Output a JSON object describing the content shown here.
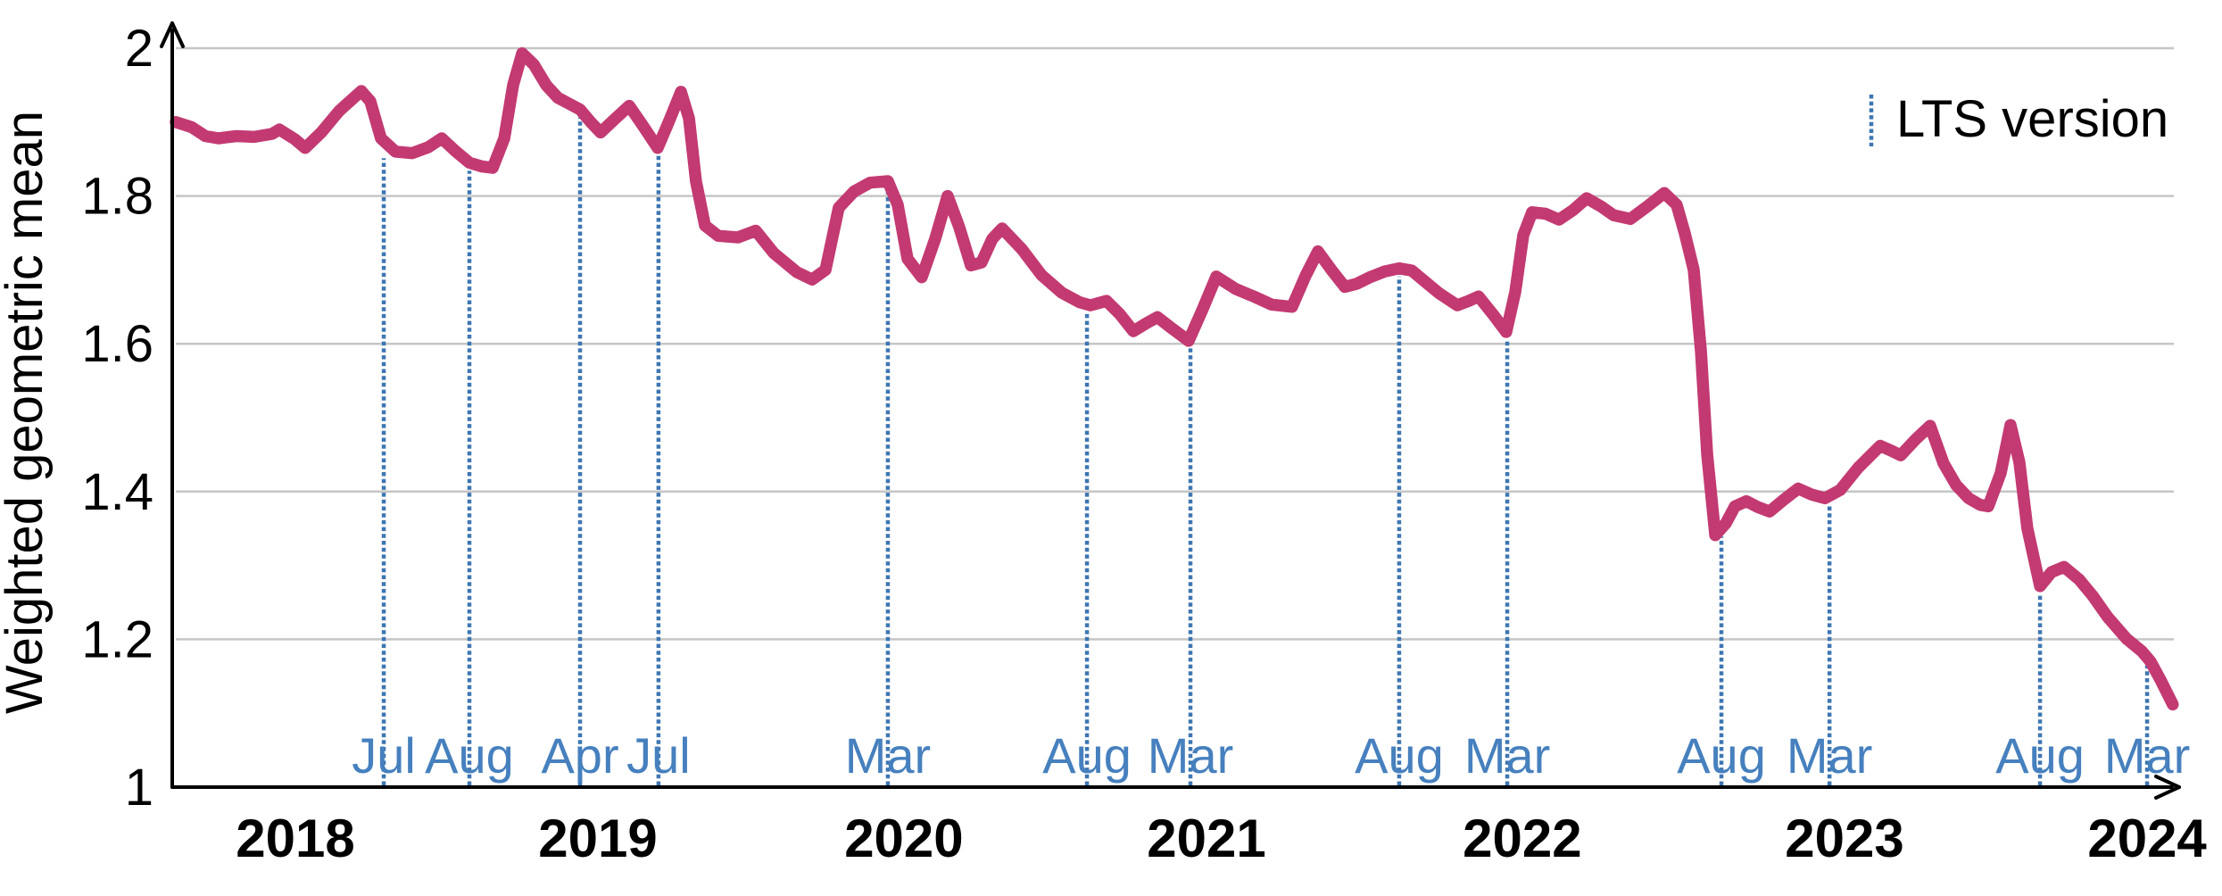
{
  "figure": {
    "y_axis_title": "Weighted geometric mean",
    "legend": {
      "label": "LTS version"
    },
    "colors": {
      "series": "#c33a72",
      "lts_line": "#3e76b2",
      "lts_label": "#4680be",
      "grid": "#c6c6c6",
      "axis": "#000000",
      "background": "#ffffff"
    }
  },
  "chart_data": {
    "type": "line",
    "title": "",
    "xlabel": "",
    "ylabel": "Weighted geometric mean",
    "ylim": [
      1,
      2
    ],
    "grid": "horizontal",
    "legend_position": "top-right",
    "y_ticks": [
      {
        "label": "2",
        "value": 2.0
      },
      {
        "label": "1.8",
        "value": 1.8
      },
      {
        "label": "1.6",
        "value": 1.6
      },
      {
        "label": "1.4",
        "value": 1.4
      },
      {
        "label": "1.2",
        "value": 1.2
      },
      {
        "label": "1",
        "value": 1.0
      }
    ],
    "grid_values": [
      2.0,
      1.8,
      1.6,
      1.4,
      1.2
    ],
    "x_axis_years": [
      {
        "label": "2018",
        "t": 0.0614
      },
      {
        "label": "2019",
        "t": 0.2123
      },
      {
        "label": "2020",
        "t": 0.3649
      },
      {
        "label": "2021",
        "t": 0.5158
      },
      {
        "label": "2022",
        "t": 0.6733
      },
      {
        "label": "2023",
        "t": 0.834
      },
      {
        "label": "2024",
        "t": 0.9849
      }
    ],
    "lts_markers": [
      {
        "label": "Jul",
        "t": 0.1055,
        "v": 1.862
      },
      {
        "label": "Aug",
        "t": 0.1482,
        "v": 1.845
      },
      {
        "label": "Apr",
        "t": 0.2034,
        "v": 1.917
      },
      {
        "label": "Jul",
        "t": 0.2425,
        "v": 1.865
      },
      {
        "label": "Mar",
        "t": 0.3569,
        "v": 1.82
      },
      {
        "label": "Aug",
        "t": 0.4562,
        "v": 1.653
      },
      {
        "label": "Mar",
        "t": 0.5078,
        "v": 1.605
      },
      {
        "label": "Aug",
        "t": 0.6119,
        "v": 1.702
      },
      {
        "label": "Mar",
        "t": 0.6658,
        "v": 1.617
      },
      {
        "label": "Aug",
        "t": 0.7726,
        "v": 1.35
      },
      {
        "label": "Mar",
        "t": 0.8265,
        "v": 1.392
      },
      {
        "label": "Aug",
        "t": 0.9315,
        "v": 1.272
      },
      {
        "label": "Mar",
        "t": 0.9849,
        "v": 1.176
      }
    ],
    "series": [
      {
        "name": "Weighted geometric mean",
        "points": [
          [
            0.0018,
            1.9
          ],
          [
            0.0098,
            1.893
          ],
          [
            0.0165,
            1.881
          ],
          [
            0.0231,
            1.878
          ],
          [
            0.032,
            1.881
          ],
          [
            0.0409,
            1.88
          ],
          [
            0.0498,
            1.884
          ],
          [
            0.0534,
            1.89
          ],
          [
            0.061,
            1.877
          ],
          [
            0.0663,
            1.865
          ],
          [
            0.0743,
            1.886
          ],
          [
            0.0832,
            1.915
          ],
          [
            0.0943,
            1.942
          ],
          [
            0.0988,
            1.928
          ],
          [
            0.1041,
            1.878
          ],
          [
            0.1113,
            1.86
          ],
          [
            0.1197,
            1.858
          ],
          [
            0.1277,
            1.866
          ],
          [
            0.1344,
            1.878
          ],
          [
            0.1411,
            1.861
          ],
          [
            0.1482,
            1.845
          ],
          [
            0.1544,
            1.84
          ],
          [
            0.1598,
            1.838
          ],
          [
            0.1656,
            1.878
          ],
          [
            0.17,
            1.95
          ],
          [
            0.1745,
            1.993
          ],
          [
            0.1803,
            1.978
          ],
          [
            0.1865,
            1.95
          ],
          [
            0.1923,
            1.933
          ],
          [
            0.2034,
            1.917
          ],
          [
            0.2087,
            1.9
          ],
          [
            0.2136,
            1.886
          ],
          [
            0.2203,
            1.903
          ],
          [
            0.2279,
            1.922
          ],
          [
            0.2345,
            1.896
          ],
          [
            0.2421,
            1.865
          ],
          [
            0.2479,
            1.902
          ],
          [
            0.2537,
            1.941
          ],
          [
            0.2577,
            1.905
          ],
          [
            0.2612,
            1.82
          ],
          [
            0.2657,
            1.76
          ],
          [
            0.2723,
            1.746
          ],
          [
            0.2821,
            1.744
          ],
          [
            0.291,
            1.753
          ],
          [
            0.2999,
            1.723
          ],
          [
            0.3115,
            1.697
          ],
          [
            0.3191,
            1.687
          ],
          [
            0.3258,
            1.7
          ],
          [
            0.3324,
            1.784
          ],
          [
            0.34,
            1.806
          ],
          [
            0.348,
            1.818
          ],
          [
            0.3569,
            1.82
          ],
          [
            0.3618,
            1.788
          ],
          [
            0.3667,
            1.715
          ],
          [
            0.3738,
            1.69
          ],
          [
            0.3805,
            1.742
          ],
          [
            0.3867,
            1.8
          ],
          [
            0.3925,
            1.758
          ],
          [
            0.3983,
            1.706
          ],
          [
            0.4036,
            1.71
          ],
          [
            0.409,
            1.742
          ],
          [
            0.4139,
            1.756
          ],
          [
            0.4237,
            1.728
          ],
          [
            0.4335,
            1.693
          ],
          [
            0.4437,
            1.669
          ],
          [
            0.4526,
            1.656
          ],
          [
            0.4579,
            1.652
          ],
          [
            0.4659,
            1.658
          ],
          [
            0.4726,
            1.64
          ],
          [
            0.4793,
            1.617
          ],
          [
            0.486,
            1.628
          ],
          [
            0.4913,
            1.636
          ],
          [
            0.498,
            1.622
          ],
          [
            0.5069,
            1.604
          ],
          [
            0.5136,
            1.645
          ],
          [
            0.5207,
            1.691
          ],
          [
            0.5305,
            1.674
          ],
          [
            0.5394,
            1.664
          ],
          [
            0.5483,
            1.653
          ],
          [
            0.5585,
            1.65
          ],
          [
            0.5652,
            1.692
          ],
          [
            0.5714,
            1.725
          ],
          [
            0.5781,
            1.7
          ],
          [
            0.5848,
            1.677
          ],
          [
            0.5906,
            1.681
          ],
          [
            0.5973,
            1.69
          ],
          [
            0.6048,
            1.698
          ],
          [
            0.6119,
            1.702
          ],
          [
            0.6182,
            1.699
          ],
          [
            0.6248,
            1.684
          ],
          [
            0.6315,
            1.669
          ],
          [
            0.6409,
            1.652
          ],
          [
            0.6466,
            1.658
          ],
          [
            0.6515,
            1.664
          ],
          [
            0.6586,
            1.64
          ],
          [
            0.6653,
            1.616
          ],
          [
            0.6698,
            1.67
          ],
          [
            0.6738,
            1.747
          ],
          [
            0.6782,
            1.778
          ],
          [
            0.6849,
            1.776
          ],
          [
            0.6916,
            1.768
          ],
          [
            0.6987,
            1.781
          ],
          [
            0.7054,
            1.797
          ],
          [
            0.7125,
            1.786
          ],
          [
            0.7188,
            1.774
          ],
          [
            0.7272,
            1.769
          ],
          [
            0.7357,
            1.786
          ],
          [
            0.7441,
            1.804
          ],
          [
            0.7503,
            1.788
          ],
          [
            0.7543,
            1.75
          ],
          [
            0.7588,
            1.7
          ],
          [
            0.7624,
            1.59
          ],
          [
            0.7655,
            1.45
          ],
          [
            0.7695,
            1.341
          ],
          [
            0.7748,
            1.357
          ],
          [
            0.7793,
            1.38
          ],
          [
            0.7851,
            1.387
          ],
          [
            0.7908,
            1.379
          ],
          [
            0.7966,
            1.373
          ],
          [
            0.8042,
            1.39
          ],
          [
            0.8109,
            1.404
          ],
          [
            0.8175,
            1.396
          ],
          [
            0.8242,
            1.391
          ],
          [
            0.8318,
            1.402
          ],
          [
            0.8407,
            1.432
          ],
          [
            0.8518,
            1.462
          ],
          [
            0.8576,
            1.455
          ],
          [
            0.862,
            1.449
          ],
          [
            0.8696,
            1.471
          ],
          [
            0.8767,
            1.489
          ],
          [
            0.8834,
            1.438
          ],
          [
            0.8896,
            1.409
          ],
          [
            0.8959,
            1.391
          ],
          [
            0.9016,
            1.382
          ],
          [
            0.9057,
            1.38
          ],
          [
            0.9119,
            1.425
          ],
          [
            0.9168,
            1.49
          ],
          [
            0.9212,
            1.44
          ],
          [
            0.9252,
            1.35
          ],
          [
            0.9315,
            1.272
          ],
          [
            0.9372,
            1.291
          ],
          [
            0.9435,
            1.298
          ],
          [
            0.951,
            1.281
          ],
          [
            0.9577,
            1.259
          ],
          [
            0.9653,
            1.23
          ],
          [
            0.9746,
            1.201
          ],
          [
            0.9822,
            1.184
          ],
          [
            0.9866,
            1.17
          ],
          [
            0.992,
            1.143
          ],
          [
            0.9977,
            1.112
          ]
        ]
      }
    ]
  }
}
